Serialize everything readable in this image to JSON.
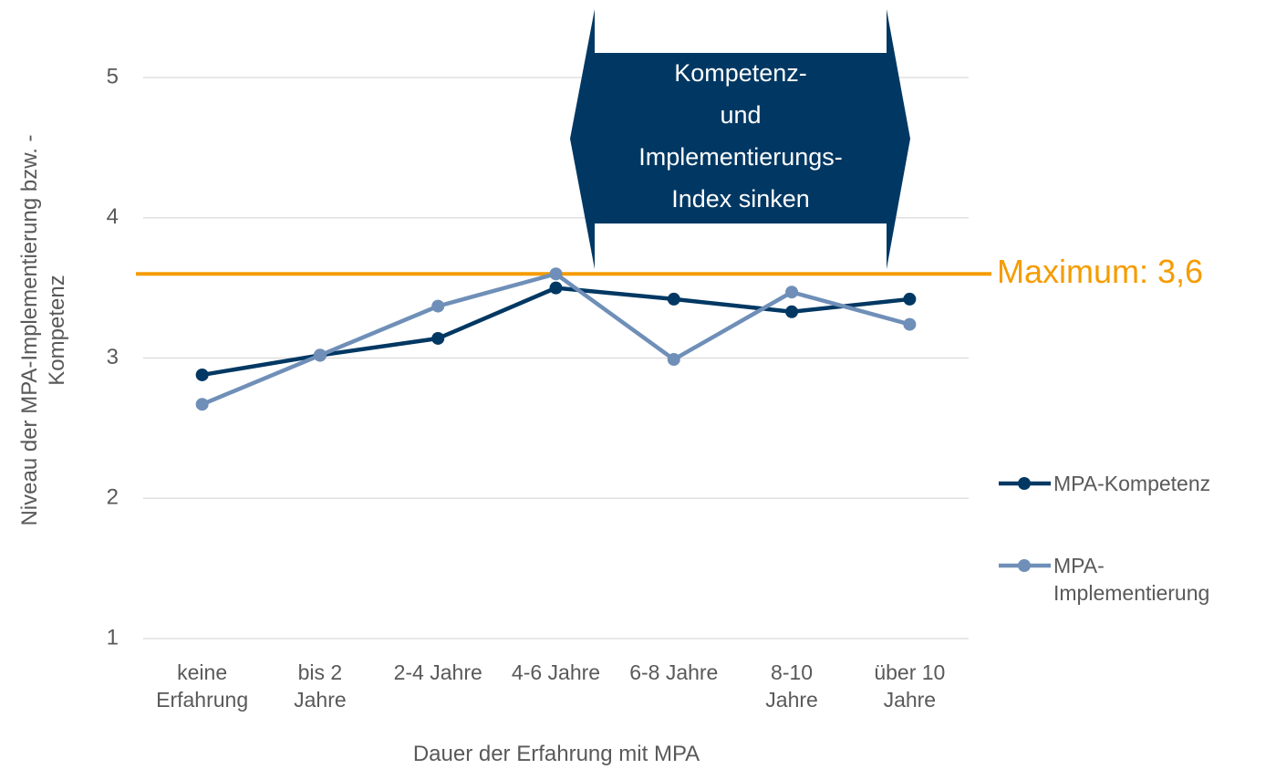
{
  "chart_data": {
    "type": "line",
    "categories": [
      "keine Erfahrung",
      "bis 2 Jahre",
      "2-4 Jahre",
      "4-6 Jahre",
      "6-8 Jahre",
      "8-10 Jahre",
      "über 10 Jahre"
    ],
    "series": [
      {
        "name": "MPA-Kompetenz",
        "color": "#003863",
        "values": [
          2.88,
          3.02,
          3.14,
          3.5,
          3.42,
          3.33,
          3.42
        ]
      },
      {
        "name": "MPA-Implementierung",
        "color": "#6f8fb8",
        "values": [
          2.67,
          3.02,
          3.37,
          3.6,
          2.99,
          3.47,
          3.24
        ]
      }
    ],
    "ylim": [
      1,
      5
    ],
    "yticks": [
      1,
      2,
      3,
      4,
      5
    ],
    "grid": true,
    "x_label": "Dauer der Erfahrung mit MPA",
    "y_label": "Niveau der MPA-Implementierung bzw. -Kompetenz",
    "legend_position": "right",
    "reference_line": {
      "value": 3.6,
      "label": "Maximum: 3,6",
      "color": "#f59c00"
    },
    "annotation": {
      "lines": [
        "Kompetenz-",
        "und",
        "Implementierungs-",
        "Index sinken"
      ],
      "color": "#003863"
    }
  }
}
